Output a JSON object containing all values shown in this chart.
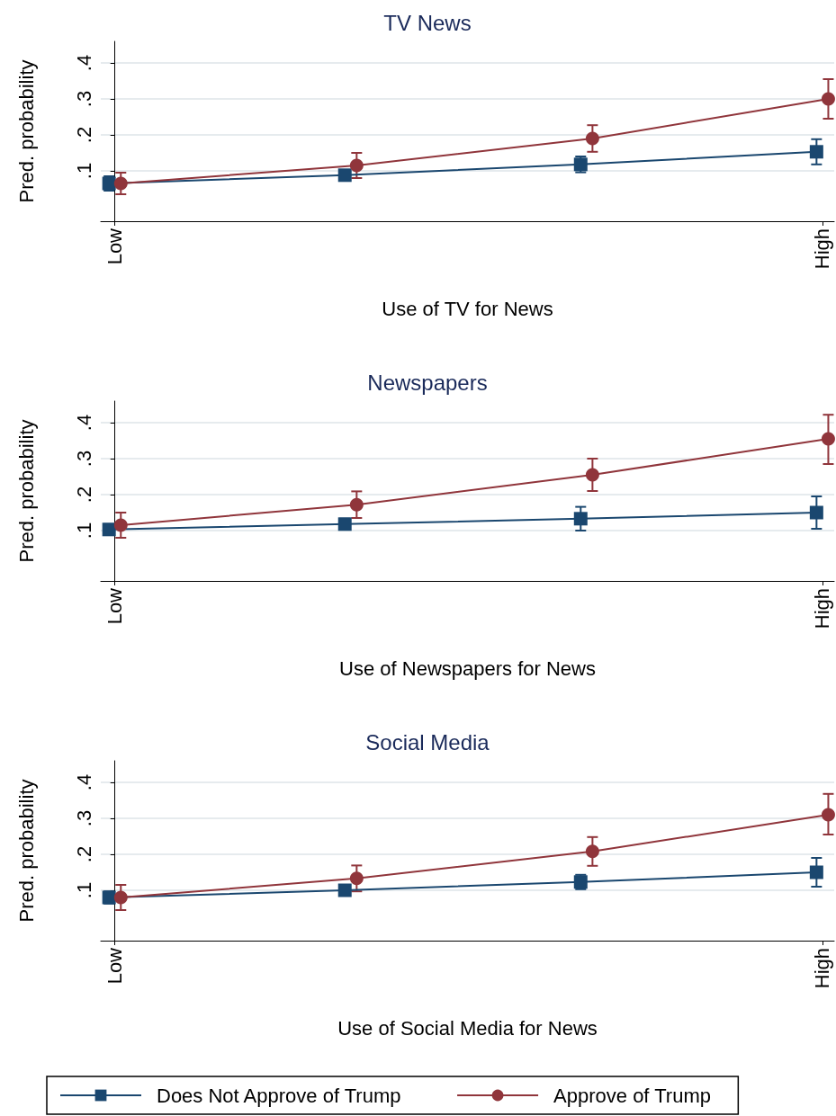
{
  "chart_data": [
    {
      "type": "line",
      "title": "TV News",
      "xlabel": "Use of TV for News",
      "ylabel": "Pred. probability",
      "categories": [
        "Low",
        null,
        null,
        "High"
      ],
      "ylim": [
        -0.04,
        0.46
      ],
      "yticks": [
        {
          "value": 0.1,
          "label": ".1"
        },
        {
          "value": 0.2,
          "label": ".2"
        },
        {
          "value": 0.3,
          "label": ".3"
        },
        {
          "value": 0.4,
          "label": ".4"
        }
      ],
      "grid": "y",
      "legend": false,
      "series": [
        {
          "color": "#1a476f",
          "marker": "square",
          "values": [
            0.065,
            0.088,
            0.118,
            0.153
          ],
          "errors": [
            0.02,
            0.012,
            0.022,
            0.035
          ]
        },
        {
          "color": "#90353b",
          "marker": "circle",
          "values": [
            0.065,
            0.115,
            0.19,
            0.3
          ],
          "errors": [
            0.03,
            0.035,
            0.037,
            [
              0.245,
              0.355
            ]
          ]
        }
      ]
    },
    {
      "type": "line",
      "title": "Newspapers",
      "xlabel": "Use of Newspapers for News",
      "ylabel": "Pred. probability",
      "categories": [
        "Low",
        null,
        null,
        "High"
      ],
      "ylim": [
        -0.04,
        0.46
      ],
      "yticks": [
        {
          "value": 0.1,
          "label": ".1"
        },
        {
          "value": 0.2,
          "label": ".2"
        },
        {
          "value": 0.3,
          "label": ".3"
        },
        {
          "value": 0.4,
          "label": ".4"
        }
      ],
      "grid": "y",
      "legend": false,
      "series": [
        {
          "color": "#1a476f",
          "marker": "square",
          "values": [
            0.103,
            0.118,
            0.133,
            0.15
          ],
          "errors": [
            0.015,
            0.015,
            0.033,
            [
              0.105,
              0.195
            ]
          ]
        },
        {
          "color": "#90353b",
          "marker": "circle",
          "values": [
            0.115,
            0.172,
            0.255,
            0.355
          ],
          "errors": [
            0.035,
            0.037,
            0.045,
            [
              0.285,
              0.422
            ]
          ]
        }
      ]
    },
    {
      "type": "line",
      "title": "Social Media",
      "xlabel": "Use of Social Media for News",
      "ylabel": "Pred. probability",
      "categories": [
        "Low",
        null,
        null,
        "High"
      ],
      "ylim": [
        -0.04,
        0.46
      ],
      "yticks": [
        {
          "value": 0.1,
          "label": ".1"
        },
        {
          "value": 0.2,
          "label": ".2"
        },
        {
          "value": 0.3,
          "label": ".3"
        },
        {
          "value": 0.4,
          "label": ".4"
        }
      ],
      "grid": "y",
      "legend": "bottom",
      "series": [
        {
          "name": "Does Not Approve of Trump",
          "color": "#1a476f",
          "marker": "square",
          "values": [
            0.08,
            0.1,
            0.123,
            0.15
          ],
          "errors": [
            0.017,
            0.013,
            0.02,
            [
              0.11,
              0.19
            ]
          ]
        },
        {
          "name": "Approve of Trump",
          "color": "#90353b",
          "marker": "circle",
          "values": [
            0.08,
            0.133,
            0.208,
            0.31
          ],
          "errors": [
            0.035,
            0.036,
            0.04,
            [
              0.255,
              0.368
            ]
          ]
        }
      ]
    }
  ]
}
